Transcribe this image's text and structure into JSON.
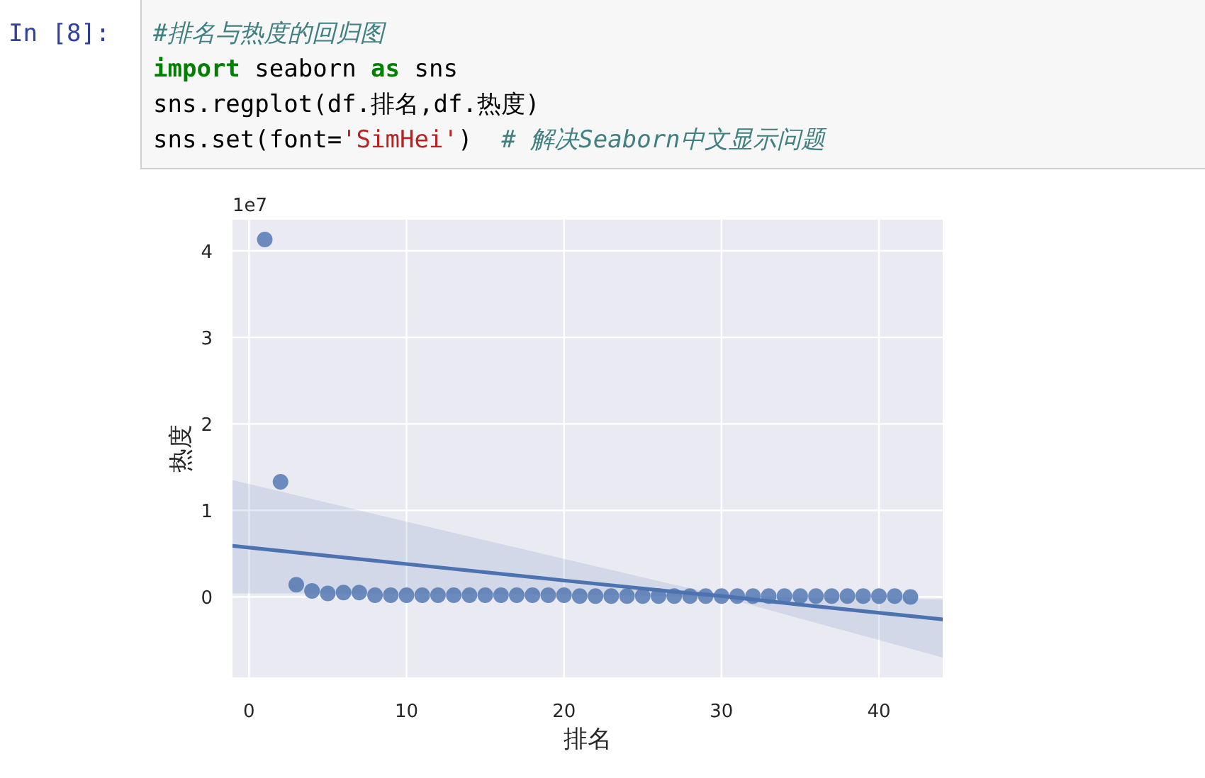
{
  "chart_data": {
    "type": "scatter",
    "xlabel": "排名",
    "ylabel": "热度",
    "annotations": [
      "1e7",
      "In [8]:",
      "#排名与热度的回归图",
      "import seaborn as sns",
      "sns.regplot(df.排名,df.热度)",
      "sns.set(font='SimHei')  # 解决Seaborn中文显示问题"
    ],
    "xlim": [
      -1.05,
      44.05
    ],
    "ylim": [
      -0.93,
      4.36
    ],
    "xticks": [
      0,
      10,
      20,
      30,
      40
    ],
    "yticks": [
      0,
      1,
      2,
      3,
      4
    ],
    "grid": true,
    "series": [
      {
        "color": "#6b8abd",
        "marker": "circle",
        "x": [
          1,
          2,
          3,
          4,
          5,
          6,
          7,
          8,
          9,
          10,
          11,
          12,
          13,
          14,
          15,
          16,
          17,
          18,
          19,
          20,
          21,
          22,
          23,
          24,
          25,
          26,
          27,
          28,
          29,
          30,
          31,
          32,
          33,
          34,
          35,
          36,
          37,
          38,
          39,
          40,
          41,
          42
        ],
        "values": [
          4.13,
          1.33,
          0.14,
          0.07,
          0.04,
          0.05,
          0.05,
          0.02,
          0.02,
          0.02,
          0.02,
          0.02,
          0.02,
          0.02,
          0.02,
          0.02,
          0.02,
          0.02,
          0.02,
          0.02,
          0.01,
          0.01,
          0.01,
          0.01,
          0.01,
          0.01,
          0.01,
          0.01,
          0.01,
          0.01,
          0.01,
          0.01,
          0.01,
          0.01,
          0.01,
          0.01,
          0.01,
          0.01,
          0.01,
          0.01,
          0.01,
          0.0
        ]
      },
      {
        "type": "line",
        "color": "#4c72b0",
        "marker": "none",
        "x": [
          -1.05,
          10,
          20,
          27,
          30,
          35,
          44.05
        ],
        "values": [
          0.59,
          0.38,
          0.19,
          0.06,
          0.01,
          -0.09,
          -0.26
        ],
        "lower": [
          0.04,
          0.04,
          0.03,
          0.01,
          0.0,
          -0.25,
          -0.7
        ],
        "upper": [
          1.35,
          0.87,
          0.44,
          0.14,
          0.02,
          -0.01,
          -0.03
        ]
      }
    ]
  }
}
